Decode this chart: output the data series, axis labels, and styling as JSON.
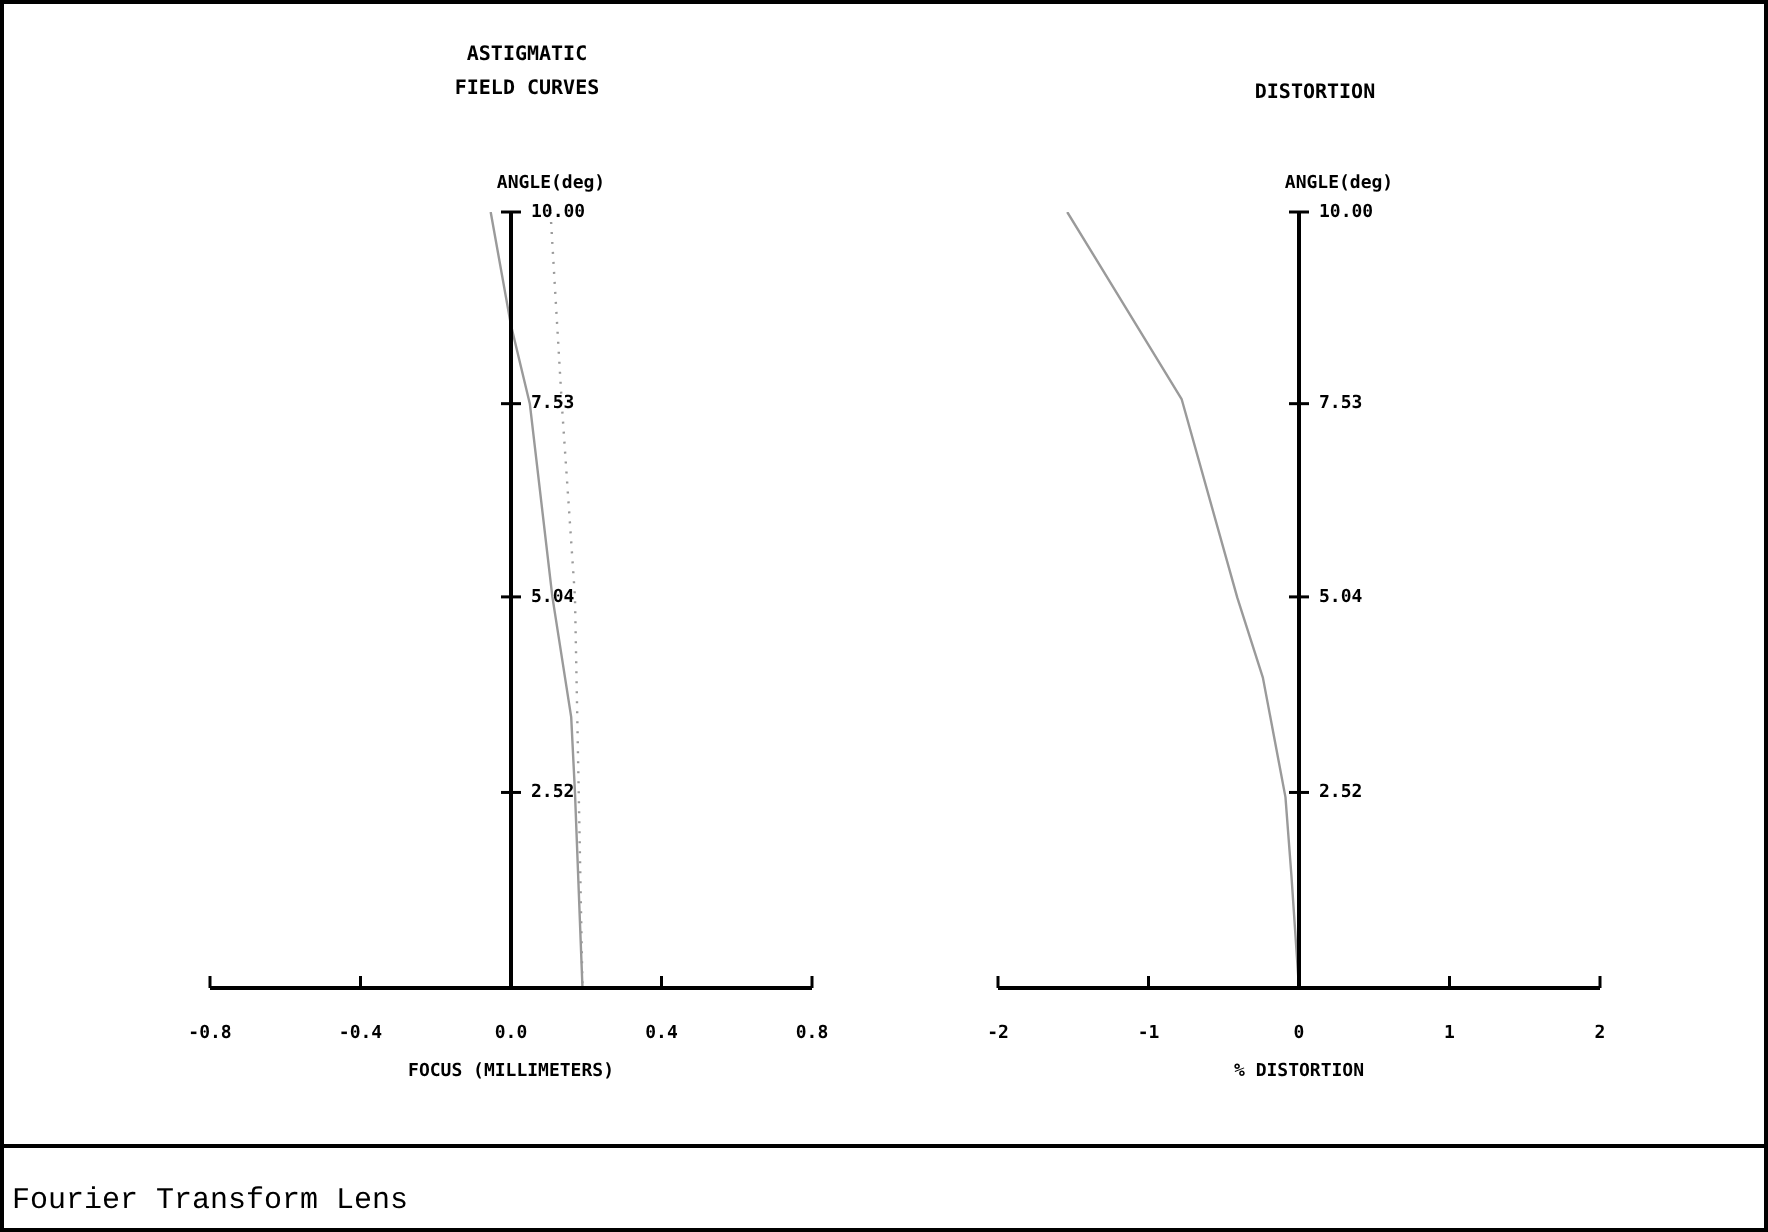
{
  "chart_data": [
    {
      "type": "line",
      "title": "ASTIGMATIC\nFIELD CURVES",
      "xlabel": "FOCUS (MILLIMETERS)",
      "ylabel": "ANGLE(deg)",
      "xlim": [
        -0.8,
        0.8
      ],
      "xticks": [
        -0.8,
        -0.4,
        {
          "value": 0,
          "label": "0.0"
        },
        0.4,
        0.8
      ],
      "ylim": [
        0,
        10
      ],
      "yticks": [
        2.52,
        5.04,
        7.53,
        {
          "value": 10,
          "label": "10.00"
        }
      ],
      "grid": false,
      "legend": false,
      "marker": "none",
      "annotations": [
        "Fourier Transform Lens"
      ],
      "series": [
        {
          "color": "#9a9a9a",
          "line_style": "solid",
          "x": [
            -0.054,
            0,
            0.05,
            0.11,
            0.16,
            0.17,
            0.19
          ],
          "values": [
            10,
            8.54,
            7.53,
            5.04,
            3.49,
            2.52,
            0
          ]
        },
        {
          "color": "#9a9a9a",
          "line_style": "dotted",
          "x": [
            0.105,
            0.135,
            0.17,
            0.19
          ],
          "values": [
            10,
            7.53,
            5.04,
            0
          ]
        }
      ]
    },
    {
      "type": "line",
      "title": "DISTORTION",
      "xlabel": "% DISTORTION",
      "ylabel": "ANGLE(deg)",
      "xlim": [
        -2,
        2
      ],
      "xticks": [
        -2,
        -1,
        0,
        1,
        2
      ],
      "ylim": [
        0,
        10
      ],
      "yticks": [
        2.52,
        5.04,
        7.53,
        {
          "value": 10,
          "label": "10.00"
        }
      ],
      "grid": false,
      "legend": false,
      "marker": "none",
      "series": [
        {
          "color": "#9a9a9a",
          "line_style": "solid",
          "x": [
            -1.54,
            -0.78,
            -0.41,
            -0.24,
            -0.09,
            -0.05,
            0
          ],
          "values": [
            10,
            7.59,
            5.03,
            4.0,
            2.46,
            1.44,
            0
          ]
        }
      ]
    }
  ]
}
